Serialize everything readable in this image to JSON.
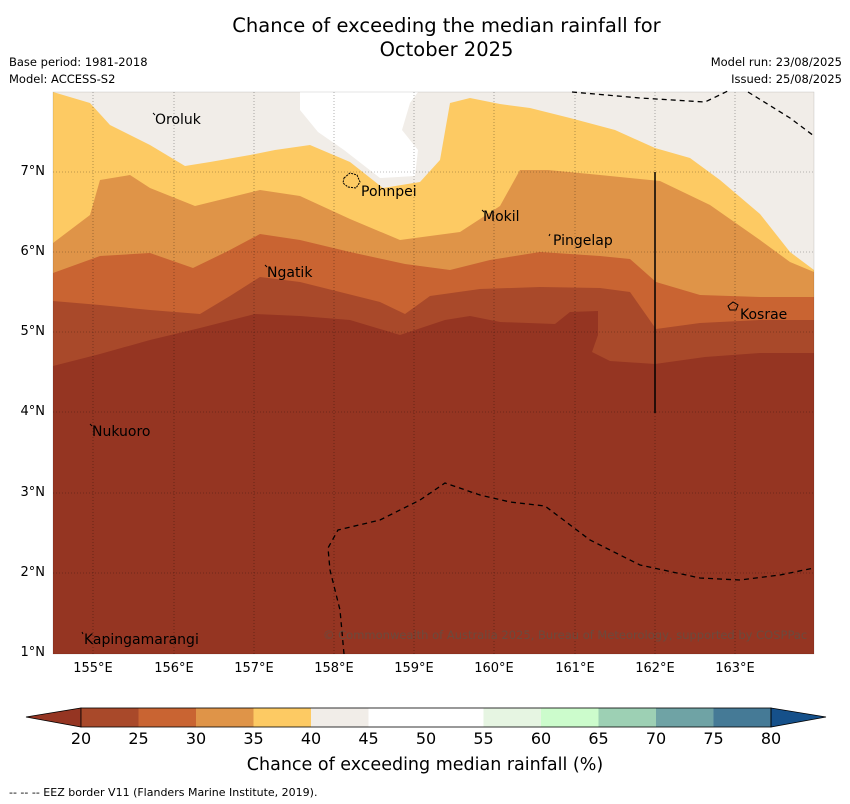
{
  "header": {
    "title_line1": "Chance of exceeding the median rainfall for",
    "title_line2": "October 2025",
    "base_period": "Base period: 1981-2018",
    "model": "Model: ACCESS-S2",
    "model_run": "Model run: 23/08/2025",
    "issued": "Issued: 25/08/2025"
  },
  "map": {
    "lat_labels": [
      "7°N",
      "6°N",
      "5°N",
      "4°N",
      "3°N",
      "2°N",
      "1°N"
    ],
    "lon_labels": [
      "155°E",
      "156°E",
      "157°E",
      "158°E",
      "159°E",
      "160°E",
      "161°E",
      "162°E",
      "163°E"
    ],
    "places": [
      "Oroluk",
      "Pohnpei",
      "Mokil",
      "Pingelap",
      "Ngatik",
      "Kosrae",
      "Nukuoro",
      "Kapingamarangi"
    ],
    "copyright": "© Commonwealth of Australia 2025, Bureau of Meteorology, supported by COSPPac",
    "colors": {
      "below_20": "#953522",
      "20_25": "#a9492a",
      "25_30": "#c96432",
      "30_35": "#df9448",
      "35_40": "#fdca63",
      "40_45": "#f1ede8",
      "45_55": "#ffffff"
    }
  },
  "colorbar": {
    "ticks": [
      "20",
      "25",
      "30",
      "35",
      "40",
      "45",
      "50",
      "55",
      "60",
      "65",
      "70",
      "75",
      "80"
    ],
    "colors": [
      "#a9492a",
      "#c96432",
      "#df9448",
      "#fdca63",
      "#f1ede8",
      "#ffffff",
      "#ffffff",
      "#e6f5e2",
      "#ccfccc",
      "#9dd0b4",
      "#6fa3a5",
      "#457a96"
    ],
    "under_color": "#953522",
    "over_color": "#15508a",
    "label": "Chance of exceeding median rainfall (%)"
  },
  "footnote": "--  --  -- EEZ border V11 (Flanders Marine Institute, 2019)."
}
